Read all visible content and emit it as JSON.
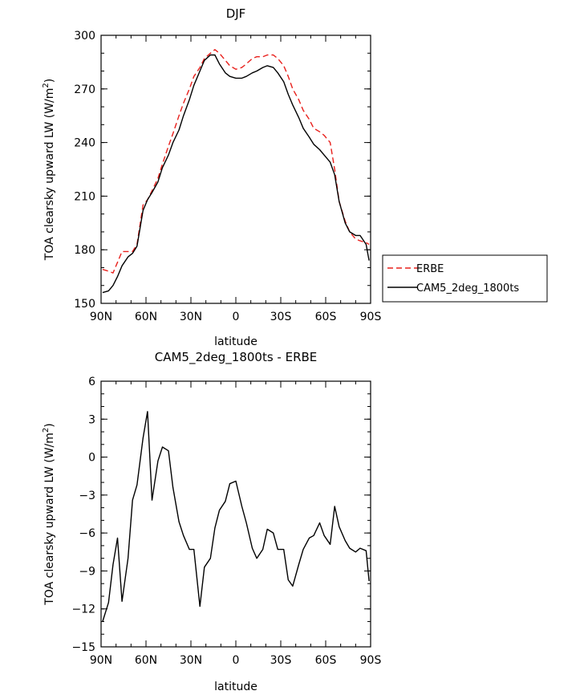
{
  "chart_data": [
    {
      "type": "line",
      "title": "DJF",
      "xlabel": "latitude",
      "ylabel": "TOA clearsky upward LW (W/m²)",
      "ylabel_main": "TOA clearsky upward LW (W/m",
      "ylabel_sup": "2",
      "ylabel_end": ")",
      "xlim": [
        -90,
        90
      ],
      "ylim": [
        150,
        300
      ],
      "x_tick_values": [
        -90,
        -60,
        -30,
        0,
        30,
        60,
        90
      ],
      "x_tick_labels": [
        "90N",
        "60N",
        "30N",
        "0",
        "30S",
        "60S",
        "90S"
      ],
      "y_tick_values": [
        150,
        180,
        210,
        240,
        270,
        300
      ],
      "y_tick_labels": [
        "150",
        "180",
        "210",
        "240",
        "270",
        "300"
      ],
      "legend": {
        "position": "right",
        "entries": [
          "ERBE",
          "CAM5_2deg_1800ts"
        ]
      },
      "series": [
        {
          "name": "ERBE",
          "color": "#e8201c",
          "dash": "dashed",
          "x": [
            -89,
            -85,
            -82,
            -79,
            -76,
            -72,
            -69,
            -66,
            -62,
            -59,
            -56,
            -52,
            -49,
            -45,
            -42,
            -38,
            -35,
            -31,
            -28,
            -24,
            -21,
            -17,
            -14,
            -11,
            -7,
            -4,
            0,
            4,
            7,
            11,
            14,
            18,
            21,
            25,
            28,
            32,
            35,
            38,
            42,
            45,
            49,
            52,
            56,
            59,
            63,
            66,
            69,
            73,
            76,
            80,
            83,
            87,
            89
          ],
          "y": [
            169,
            168,
            167,
            173,
            179,
            179,
            179,
            183,
            205,
            208,
            213,
            220,
            228,
            238,
            245,
            255,
            262,
            270,
            277,
            282,
            287,
            290,
            292,
            290,
            286,
            283,
            281,
            282,
            284,
            287,
            288,
            288,
            289,
            289,
            287,
            283,
            277,
            270,
            264,
            258,
            253,
            248,
            246,
            244,
            240,
            225,
            207,
            196,
            190,
            186,
            185,
            184,
            183
          ]
        },
        {
          "name": "CAM5_2deg_1800ts",
          "color": "#000000",
          "dash": "solid",
          "x": [
            -89,
            -85,
            -82,
            -79,
            -76,
            -72,
            -69,
            -66,
            -62,
            -59,
            -56,
            -52,
            -49,
            -45,
            -42,
            -38,
            -35,
            -31,
            -28,
            -24,
            -21,
            -17,
            -14,
            -11,
            -7,
            -4,
            0,
            4,
            7,
            11,
            14,
            18,
            21,
            25,
            28,
            32,
            35,
            38,
            42,
            45,
            49,
            52,
            56,
            59,
            63,
            66,
            69,
            73,
            76,
            80,
            83,
            87,
            89
          ],
          "y": [
            156,
            157,
            160,
            165,
            171,
            176,
            178,
            182,
            202,
            208,
            212,
            218,
            226,
            233,
            240,
            247,
            255,
            264,
            272,
            280,
            286,
            289,
            289,
            284,
            279,
            277,
            276,
            276,
            277,
            279,
            280,
            282,
            283,
            282,
            279,
            274,
            267,
            261,
            254,
            248,
            243,
            239,
            236,
            233,
            229,
            222,
            207,
            195,
            190,
            188,
            188,
            183,
            174
          ]
        }
      ]
    },
    {
      "type": "line",
      "title": "CAM5_2deg_1800ts - ERBE",
      "xlabel": "latitude",
      "ylabel": "TOA clearsky upward LW (W/m²)",
      "ylabel_main": "TOA clearsky upward LW (W/m",
      "ylabel_sup": "2",
      "ylabel_end": ")",
      "xlim": [
        -90,
        90
      ],
      "ylim": [
        -15,
        6
      ],
      "x_tick_values": [
        -90,
        -60,
        -30,
        0,
        30,
        60,
        90
      ],
      "x_tick_labels": [
        "90N",
        "60N",
        "30N",
        "0",
        "30S",
        "60S",
        "90S"
      ],
      "y_tick_values": [
        -15,
        -12,
        -9,
        -6,
        -3,
        0,
        3,
        6
      ],
      "y_tick_labels": [
        "−15",
        "−12",
        "−9",
        "−6",
        "−3",
        "0",
        "3",
        "6"
      ],
      "series": [
        {
          "color": "#000000",
          "dash": "solid",
          "x": [
            -89,
            -85,
            -82,
            -79,
            -76,
            -72,
            -69,
            -66,
            -62,
            -59,
            -56,
            -52,
            -49,
            -45,
            -42,
            -38,
            -35,
            -31,
            -28,
            -24,
            -21,
            -17,
            -14,
            -11,
            -7,
            -4,
            0,
            4,
            7,
            11,
            14,
            18,
            21,
            25,
            28,
            32,
            35,
            38,
            42,
            45,
            49,
            52,
            56,
            59,
            63,
            66,
            69,
            73,
            76,
            80,
            83,
            87,
            89
          ],
          "y": [
            -13,
            -11.5,
            -8.5,
            -6.4,
            -11.4,
            -8,
            -3.4,
            -2.2,
            1.5,
            3.6,
            -3.4,
            -0.3,
            0.8,
            0.5,
            -2.4,
            -5.1,
            -6.2,
            -7.3,
            -7.3,
            -11.8,
            -8.7,
            -8,
            -5.6,
            -4.2,
            -3.5,
            -2.1,
            -1.9,
            -3.9,
            -5.2,
            -7.2,
            -8,
            -7.3,
            -5.7,
            -6,
            -7.3,
            -7.3,
            -9.7,
            -10.2,
            -8.5,
            -7.3,
            -6.4,
            -6.2,
            -5.2,
            -6.2,
            -6.9,
            -3.9,
            -5.5,
            -6.6,
            -7.2,
            -7.5,
            -7.2,
            -7.4,
            -9.8
          ]
        }
      ]
    }
  ]
}
